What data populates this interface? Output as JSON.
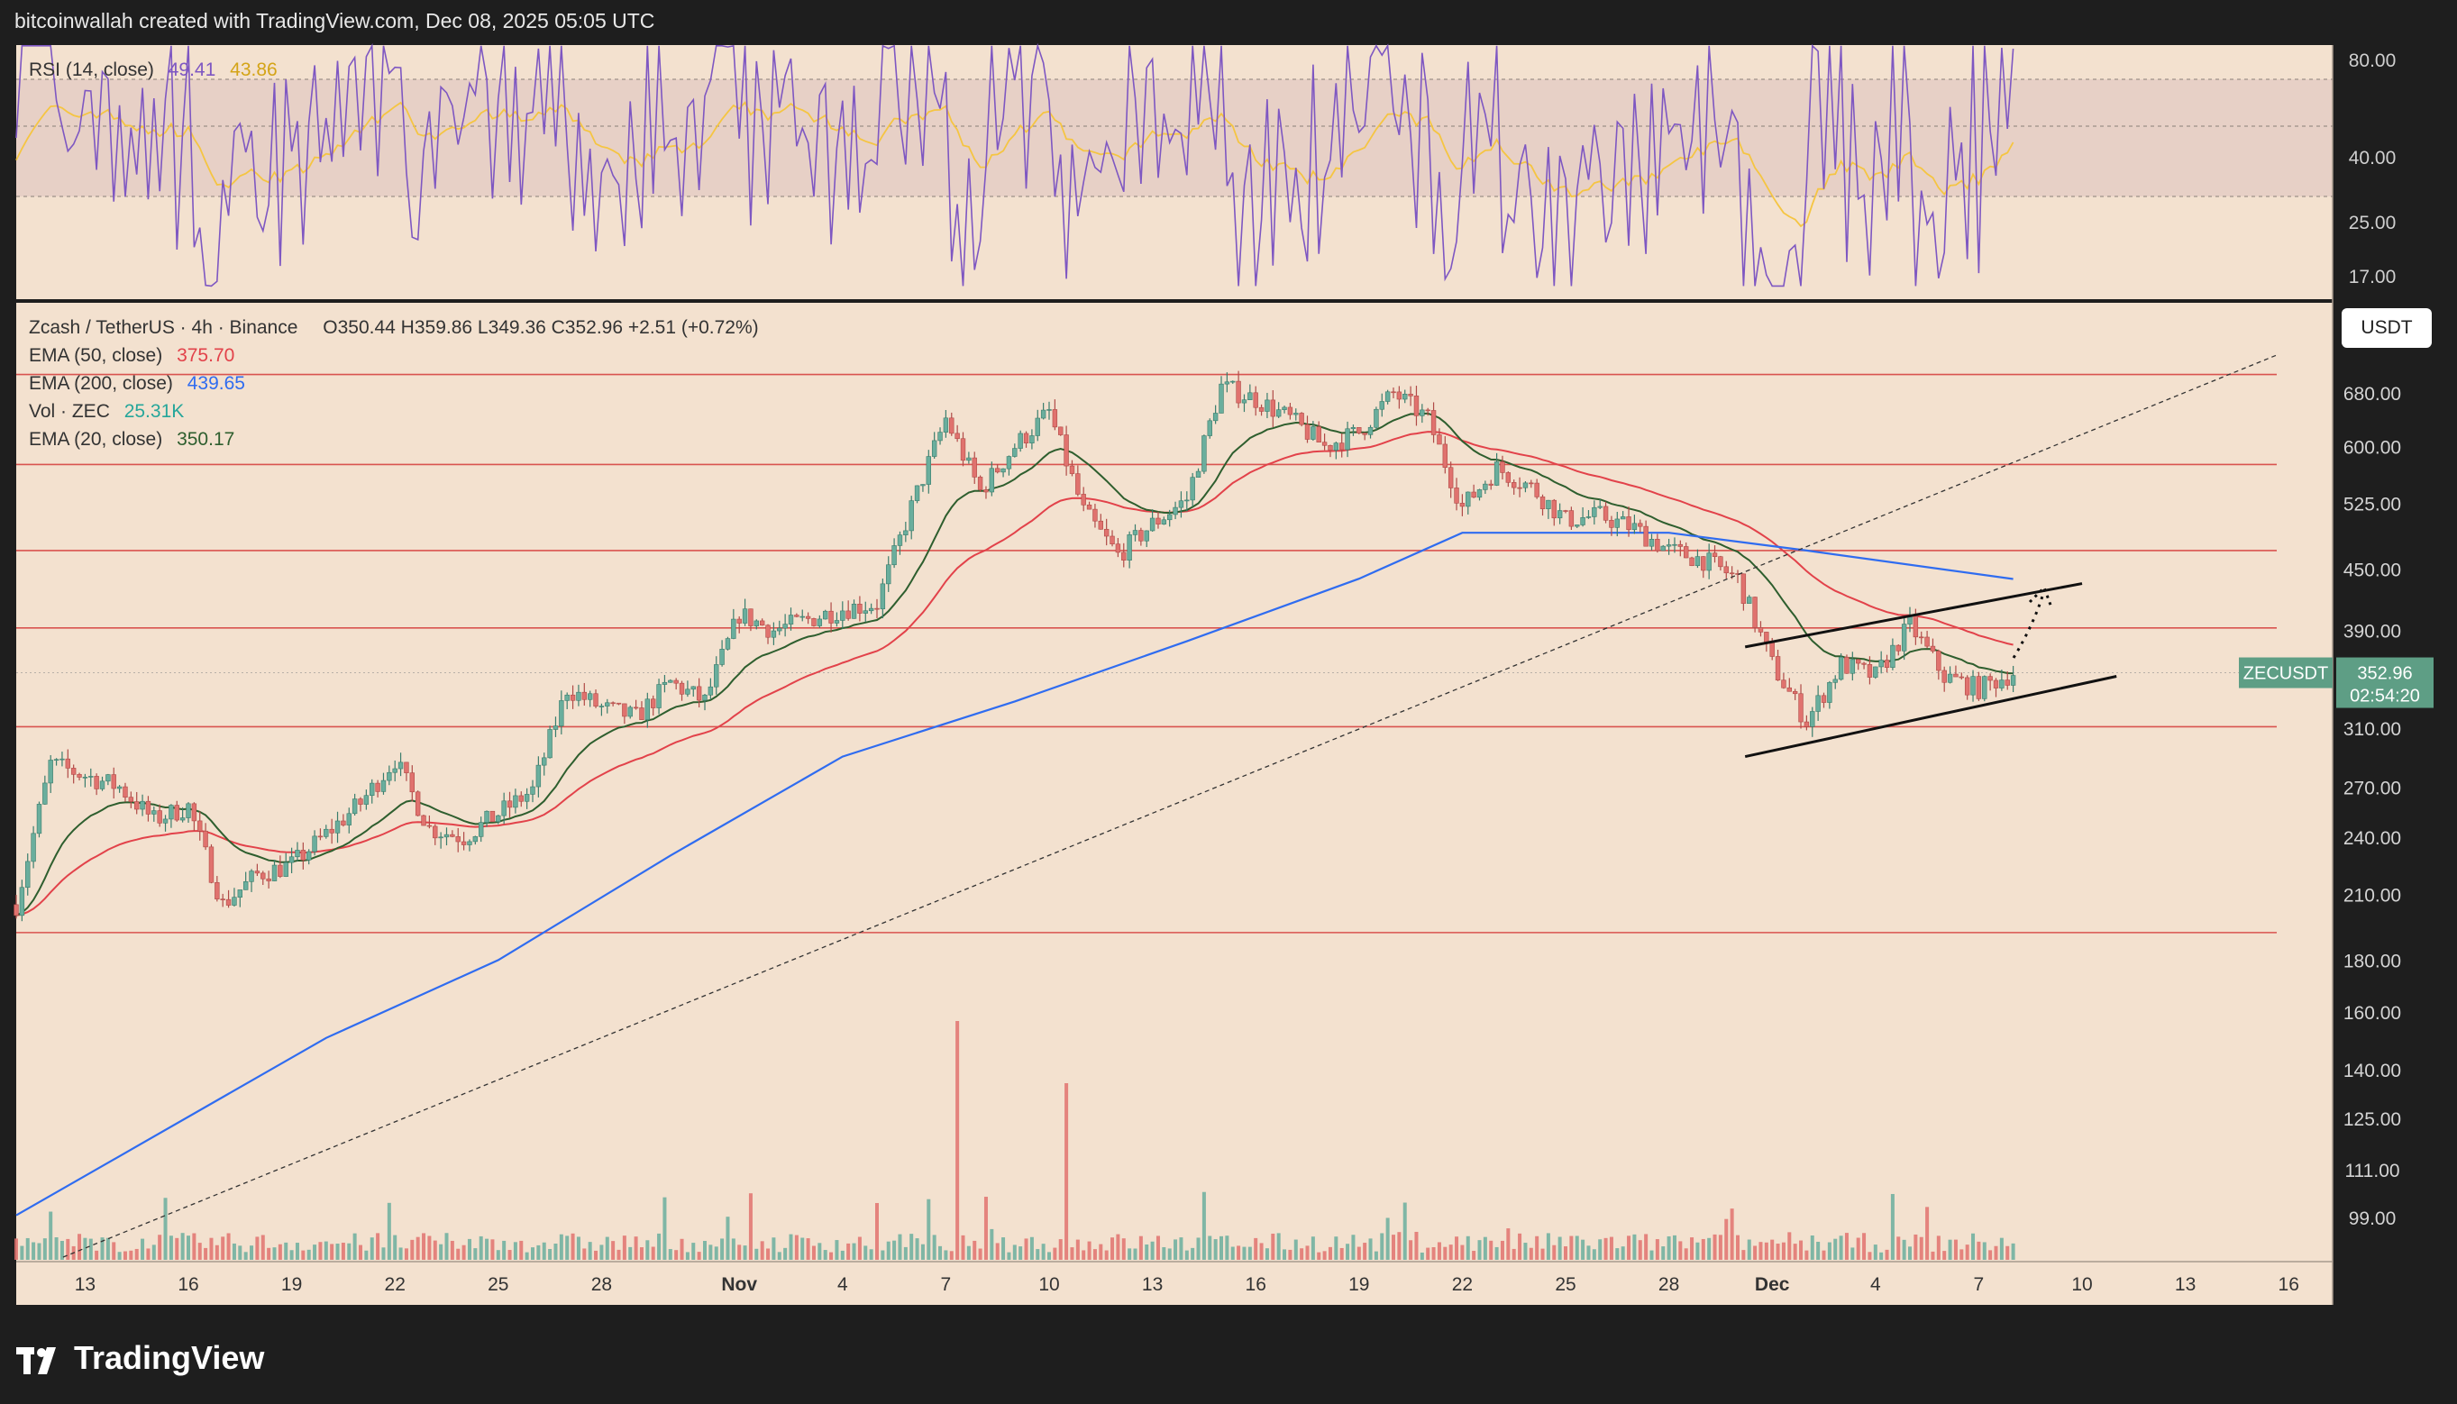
{
  "header": {
    "text": "bitcoinwallah created with TradingView.com, Dec 08, 2025 05:05 UTC"
  },
  "brand": {
    "name": "TradingView"
  },
  "colors": {
    "panel": "#f3e1cf",
    "frame": "#1e1e1e",
    "up": "#6aae9d",
    "down": "#e0726e",
    "ema20": "#2e5e2e",
    "ema50": "#e2424a",
    "ema200": "#2f6cf0",
    "rsi": "#7e57c2",
    "rsi_ma": "#f5c542",
    "hline": "#d9534f",
    "price_tag": "#5e9e85"
  },
  "rsi_panel": {
    "label": "RSI (14, close)",
    "value": "49.41",
    "ma_value": "43.86",
    "ticks": [
      "80.00",
      "40.00",
      "25.00",
      "17.00"
    ]
  },
  "main_panel": {
    "legend": {
      "symbol": "Zcash / TetherUS · 4h · Binance",
      "ohlc": "O350.44  H359.86  L349.36  C352.96  +2.51 (+0.72%)",
      "ema50": {
        "label": "EMA (50, close)",
        "value": "375.70"
      },
      "ema200": {
        "label": "EMA (200, close)",
        "value": "439.65"
      },
      "vol": {
        "label": "Vol · ZEC",
        "value": "25.31K"
      },
      "ema20": {
        "label": "EMA (20, close)",
        "value": "350.17"
      }
    },
    "currency_button": "USDT",
    "price_tag": {
      "symbol": "ZECUSDT",
      "price": "352.96",
      "countdown": "02:54:20"
    },
    "price_ticks": [
      "680.00",
      "600.00",
      "525.00",
      "450.00",
      "390.00",
      "310.00",
      "270.00",
      "240.00",
      "210.00",
      "180.00",
      "160.00",
      "140.00",
      "125.00",
      "111.00",
      "99.00"
    ],
    "horizontal_levels": [
      710,
      575,
      470,
      392,
      311,
      192
    ],
    "date_ticks": [
      "13",
      "16",
      "19",
      "22",
      "25",
      "28",
      "Nov",
      "4",
      "7",
      "10",
      "13",
      "16",
      "19",
      "22",
      "25",
      "28",
      "Dec",
      "4",
      "7",
      "10",
      "13",
      "16"
    ]
  },
  "chart_data": {
    "type": "candlestick",
    "symbol": "ZECUSDT",
    "interval": "4h",
    "x_range": [
      "Oct 11, 2025",
      "Dec 17, 2025"
    ],
    "y_scale": "log",
    "close_path": [
      {
        "date": "Oct 11",
        "price": 205
      },
      {
        "date": "Oct 12",
        "price": 285
      },
      {
        "date": "Oct 14",
        "price": 270
      },
      {
        "date": "Oct 15",
        "price": 250
      },
      {
        "date": "Oct 16",
        "price": 258
      },
      {
        "date": "Oct 17",
        "price": 205
      },
      {
        "date": "Oct 18",
        "price": 220
      },
      {
        "date": "Oct 19",
        "price": 225
      },
      {
        "date": "Oct 21",
        "price": 260
      },
      {
        "date": "Oct 22",
        "price": 288
      },
      {
        "date": "Oct 23",
        "price": 245
      },
      {
        "date": "Oct 24",
        "price": 240
      },
      {
        "date": "Oct 26",
        "price": 268
      },
      {
        "date": "Oct 27",
        "price": 340
      },
      {
        "date": "Oct 28",
        "price": 325
      },
      {
        "date": "Oct 29",
        "price": 318
      },
      {
        "date": "Oct 30",
        "price": 345
      },
      {
        "date": "Oct 31",
        "price": 330
      },
      {
        "date": "Nov 1",
        "price": 405
      },
      {
        "date": "Nov 2",
        "price": 390
      },
      {
        "date": "Nov 4",
        "price": 410
      },
      {
        "date": "Nov 5",
        "price": 415
      },
      {
        "date": "Nov 6",
        "price": 520
      },
      {
        "date": "Nov 7",
        "price": 640
      },
      {
        "date": "Nov 8",
        "price": 540
      },
      {
        "date": "Nov 9",
        "price": 600
      },
      {
        "date": "Nov 10",
        "price": 650
      },
      {
        "date": "Nov 11",
        "price": 515
      },
      {
        "date": "Nov 12",
        "price": 465
      },
      {
        "date": "Nov 13",
        "price": 500
      },
      {
        "date": "Nov 14",
        "price": 530
      },
      {
        "date": "Nov 15",
        "price": 690
      },
      {
        "date": "Nov 16",
        "price": 670
      },
      {
        "date": "Nov 17",
        "price": 640
      },
      {
        "date": "Nov 18",
        "price": 600
      },
      {
        "date": "Nov 19",
        "price": 620
      },
      {
        "date": "Nov 20",
        "price": 680
      },
      {
        "date": "Nov 21",
        "price": 640
      },
      {
        "date": "Nov 22",
        "price": 520
      },
      {
        "date": "Nov 23",
        "price": 570
      },
      {
        "date": "Nov 24",
        "price": 545
      },
      {
        "date": "Nov 25",
        "price": 505
      },
      {
        "date": "Nov 26",
        "price": 510
      },
      {
        "date": "Nov 27",
        "price": 495
      },
      {
        "date": "Nov 28",
        "price": 470
      },
      {
        "date": "Nov 29",
        "price": 460
      },
      {
        "date": "Nov 30",
        "price": 440
      },
      {
        "date": "Dec 1",
        "price": 360
      },
      {
        "date": "Dec 2",
        "price": 315
      },
      {
        "date": "Dec 3",
        "price": 360
      },
      {
        "date": "Dec 4",
        "price": 350
      },
      {
        "date": "Dec 5",
        "price": 395
      },
      {
        "date": "Dec 6",
        "price": 350
      },
      {
        "date": "Dec 7",
        "price": 340
      },
      {
        "date": "Dec 8",
        "price": 352.96
      }
    ],
    "ema200_path": [
      {
        "date": "Oct 11",
        "price": 99
      },
      {
        "date": "Oct 20",
        "price": 150
      },
      {
        "date": "Oct 25",
        "price": 180
      },
      {
        "date": "Oct 30",
        "price": 230
      },
      {
        "date": "Nov 4",
        "price": 290
      },
      {
        "date": "Nov 9",
        "price": 330
      },
      {
        "date": "Nov 14",
        "price": 380
      },
      {
        "date": "Nov 19",
        "price": 440
      },
      {
        "date": "Nov 22",
        "price": 490
      },
      {
        "date": "Nov 28",
        "price": 490
      },
      {
        "date": "Dec 2",
        "price": 470
      },
      {
        "date": "Dec 8",
        "price": 439.65
      }
    ],
    "channel": {
      "upper": [
        {
          "date": "Dec 1",
          "price": 375
        },
        {
          "date": "Dec 10",
          "price": 435
        }
      ],
      "lower": [
        {
          "date": "Dec 1",
          "price": 290
        },
        {
          "date": "Dec 11",
          "price": 350
        }
      ]
    }
  }
}
